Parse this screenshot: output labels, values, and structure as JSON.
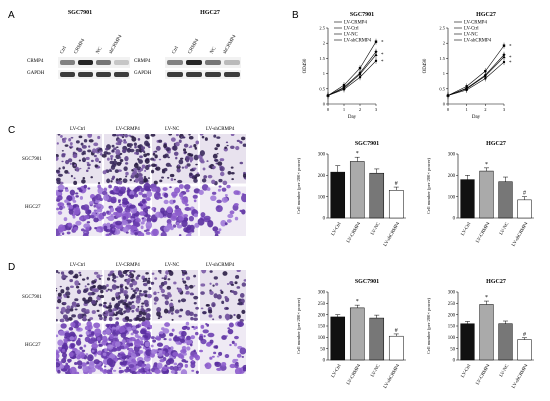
{
  "panel_labels": [
    "A",
    "B",
    "C",
    "D"
  ],
  "panel_a": {
    "blots": [
      {
        "title": "SGC7901",
        "lanes": [
          "Ctrl",
          "CRMP4",
          "NC",
          "shCRMP4"
        ],
        "rows": [
          {
            "label": "CRMP4",
            "intensity": [
              0.55,
              0.95,
              0.6,
              0.25
            ]
          },
          {
            "label": "GAPDH",
            "intensity": [
              0.85,
              0.85,
              0.85,
              0.85
            ]
          }
        ]
      },
      {
        "title": "HGC27",
        "lanes": [
          "Ctrl",
          "CRMP4",
          "NC",
          "shCRMP4"
        ],
        "rows": [
          {
            "label": "CRMP4",
            "intensity": [
              0.55,
              0.95,
              0.6,
              0.3
            ]
          },
          {
            "label": "GAPDH",
            "intensity": [
              0.85,
              0.85,
              0.85,
              0.85
            ]
          }
        ]
      }
    ]
  },
  "panel_c": {
    "columns": [
      "LV-Ctrl",
      "LV-CRMP4",
      "LV-NC",
      "LV-shCRMP4"
    ],
    "rows": [
      "SGC7901",
      "HGC27"
    ]
  },
  "panel_d": {
    "columns": [
      "LV-Ctrl",
      "LV-CRMP4",
      "LV-NC",
      "LV-shCRMP4"
    ],
    "rows": [
      "SGC7901",
      "HGC27"
    ]
  },
  "chart_data": [
    {
      "id": "b1",
      "type": "line",
      "title": "SGC7901",
      "xlabel": "Day",
      "ylabel": "OD490",
      "x": [
        0,
        1,
        2,
        3
      ],
      "xlim": [
        0,
        3
      ],
      "ylim": [
        0,
        2.5
      ],
      "yticks": [
        0,
        0.5,
        1,
        1.5,
        2,
        2.5
      ],
      "series": [
        {
          "name": "LV-CRMP4",
          "values": [
            0.28,
            0.62,
            1.18,
            2.05
          ]
        },
        {
          "name": "LV-Ctrl",
          "values": [
            0.28,
            0.55,
            1.02,
            1.72
          ]
        },
        {
          "name": "LV-NC",
          "values": [
            0.28,
            0.52,
            0.98,
            1.62
          ]
        },
        {
          "name": "LV-shCRMP4",
          "values": [
            0.28,
            0.48,
            0.88,
            1.42
          ]
        }
      ],
      "annotations": [
        "*",
        "*",
        "*"
      ]
    },
    {
      "id": "b2",
      "type": "line",
      "title": "HGC27",
      "xlabel": "Day",
      "ylabel": "OD490",
      "x": [
        0,
        1,
        2,
        3
      ],
      "xlim": [
        0,
        3
      ],
      "ylim": [
        0,
        2.5
      ],
      "yticks": [
        0,
        0.5,
        1,
        1.5,
        2,
        2.5
      ],
      "series": [
        {
          "name": "LV-CRMP4",
          "values": [
            0.28,
            0.58,
            1.08,
            1.92
          ]
        },
        {
          "name": "LV-Ctrl",
          "values": [
            0.28,
            0.52,
            0.95,
            1.62
          ]
        },
        {
          "name": "LV-NC",
          "values": [
            0.28,
            0.5,
            0.92,
            1.55
          ]
        },
        {
          "name": "LV-shCRMP4",
          "values": [
            0.28,
            0.46,
            0.84,
            1.38
          ]
        }
      ],
      "annotations": [
        "*",
        "*",
        "*"
      ]
    },
    {
      "id": "c1",
      "type": "bar",
      "title": "SGC7901",
      "ylabel": "Cell number (per 200× power)",
      "categories": [
        "LV-Ctrl",
        "LV-CRMP4",
        "LV-NC",
        "LV-shCRMP4"
      ],
      "values": [
        215,
        265,
        210,
        130
      ],
      "errors": [
        30,
        20,
        20,
        15
      ],
      "ylim": [
        0,
        300
      ],
      "yticks": [
        0,
        100,
        200,
        300
      ],
      "marks": [
        "",
        "*",
        "",
        "#"
      ],
      "colors": [
        "#111111",
        "#aaaaaa",
        "#777777",
        "#ffffff"
      ]
    },
    {
      "id": "c2",
      "type": "bar",
      "title": "HGC27",
      "ylabel": "Cell number (per 200× power)",
      "categories": [
        "LV-Ctrl",
        "LV-CRMP4",
        "LV-NC",
        "LV-shCRMP4"
      ],
      "values": [
        180,
        220,
        170,
        85
      ],
      "errors": [
        20,
        15,
        22,
        15
      ],
      "ylim": [
        0,
        300
      ],
      "yticks": [
        0,
        100,
        200,
        300
      ],
      "marks": [
        "",
        "*",
        "",
        "#"
      ],
      "colors": [
        "#111111",
        "#aaaaaa",
        "#777777",
        "#ffffff"
      ]
    },
    {
      "id": "d1",
      "type": "bar",
      "title": "SGC7901",
      "ylabel": "Cell number (per 200× power)",
      "categories": [
        "LV-Ctrl",
        "LV-CRMP4",
        "LV-NC",
        "LV-shCRMP4"
      ],
      "values": [
        190,
        230,
        185,
        105
      ],
      "errors": [
        10,
        12,
        13,
        10
      ],
      "ylim": [
        0,
        300
      ],
      "yticks": [
        0,
        50,
        100,
        150,
        200,
        250,
        300
      ],
      "marks": [
        "",
        "*",
        "",
        "#"
      ],
      "colors": [
        "#111111",
        "#aaaaaa",
        "#777777",
        "#ffffff"
      ]
    },
    {
      "id": "d2",
      "type": "bar",
      "title": "HGC27",
      "ylabel": "Cell number (per 200× power)",
      "categories": [
        "LV-Ctrl",
        "LV-CRMP4",
        "LV-NC",
        "LV-shCRMP4"
      ],
      "values": [
        160,
        245,
        160,
        90
      ],
      "errors": [
        10,
        15,
        12,
        8
      ],
      "ylim": [
        0,
        300
      ],
      "yticks": [
        0,
        50,
        100,
        150,
        200,
        250,
        300
      ],
      "marks": [
        "",
        "*",
        "",
        "#"
      ],
      "colors": [
        "#111111",
        "#aaaaaa",
        "#777777",
        "#ffffff"
      ]
    }
  ]
}
